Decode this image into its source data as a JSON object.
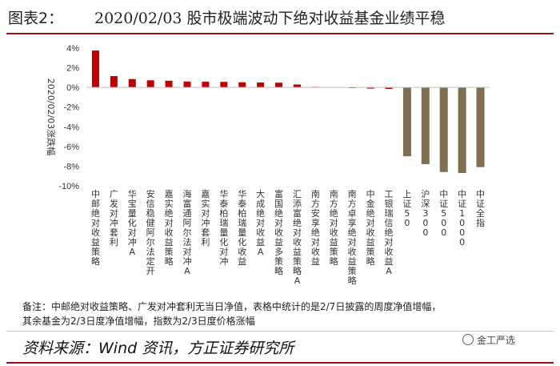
{
  "header": {
    "label": "图表2：",
    "title": "2020/02/03 股市极端波动下绝对收益基金业绩平稳"
  },
  "colors": {
    "fund_bar": "#c00000",
    "index_bar": "#7f6e4f",
    "accent_rule": "#a01010"
  },
  "chart_data": {
    "type": "bar",
    "title": "",
    "ylabel": "2020/02/03涨跌幅",
    "ylim": [
      -10,
      4
    ],
    "yticks": [
      "4%",
      "2%",
      "0%",
      "-2%",
      "-4%",
      "-6%",
      "-8%",
      "-10%"
    ],
    "categories": [
      "中邮绝对收益策略",
      "广发对冲套利",
      "华宝量化对冲A",
      "安信稳健阿尔法定开",
      "嘉实绝对收益策略",
      "海富通阿尔法对冲A",
      "嘉实对冲套利",
      "华泰柏瑞量化对冲",
      "华泰柏瑞量化收益",
      "大成绝对收益A",
      "富国绝对收益多策略",
      "汇添富绝对收益策略A",
      "南方安享绝对收益",
      "南方绝对收益策略",
      "南方卓享绝对收益策略",
      "中金绝对收益策略",
      "工银瑞信绝对收益A",
      "上证50",
      "沪深300",
      "中证500",
      "中证1000",
      "中证全指"
    ],
    "values": [
      3.75,
      1.15,
      0.85,
      0.72,
      0.68,
      0.6,
      0.58,
      0.56,
      0.52,
      0.5,
      0.48,
      0.3,
      0.06,
      0.0,
      -0.02,
      -0.12,
      -0.15,
      -7.0,
      -7.8,
      -8.6,
      -8.7,
      -8.1
    ],
    "group": [
      "fund",
      "fund",
      "fund",
      "fund",
      "fund",
      "fund",
      "fund",
      "fund",
      "fund",
      "fund",
      "fund",
      "fund",
      "fund",
      "fund",
      "fund",
      "fund",
      "fund",
      "index",
      "index",
      "index",
      "index",
      "index"
    ]
  },
  "note": {
    "line1": "备注：中邮绝对收益策略、广发对冲套利无当日净值，表格中统计的是2/7日披露的周度净值增幅，",
    "line2": "其余基金为2/3日度净值增幅，指数为2/3日度价格涨幅"
  },
  "source": "资料来源：Wind 资讯，方正证券研究所",
  "logo_text": "金工严选"
}
